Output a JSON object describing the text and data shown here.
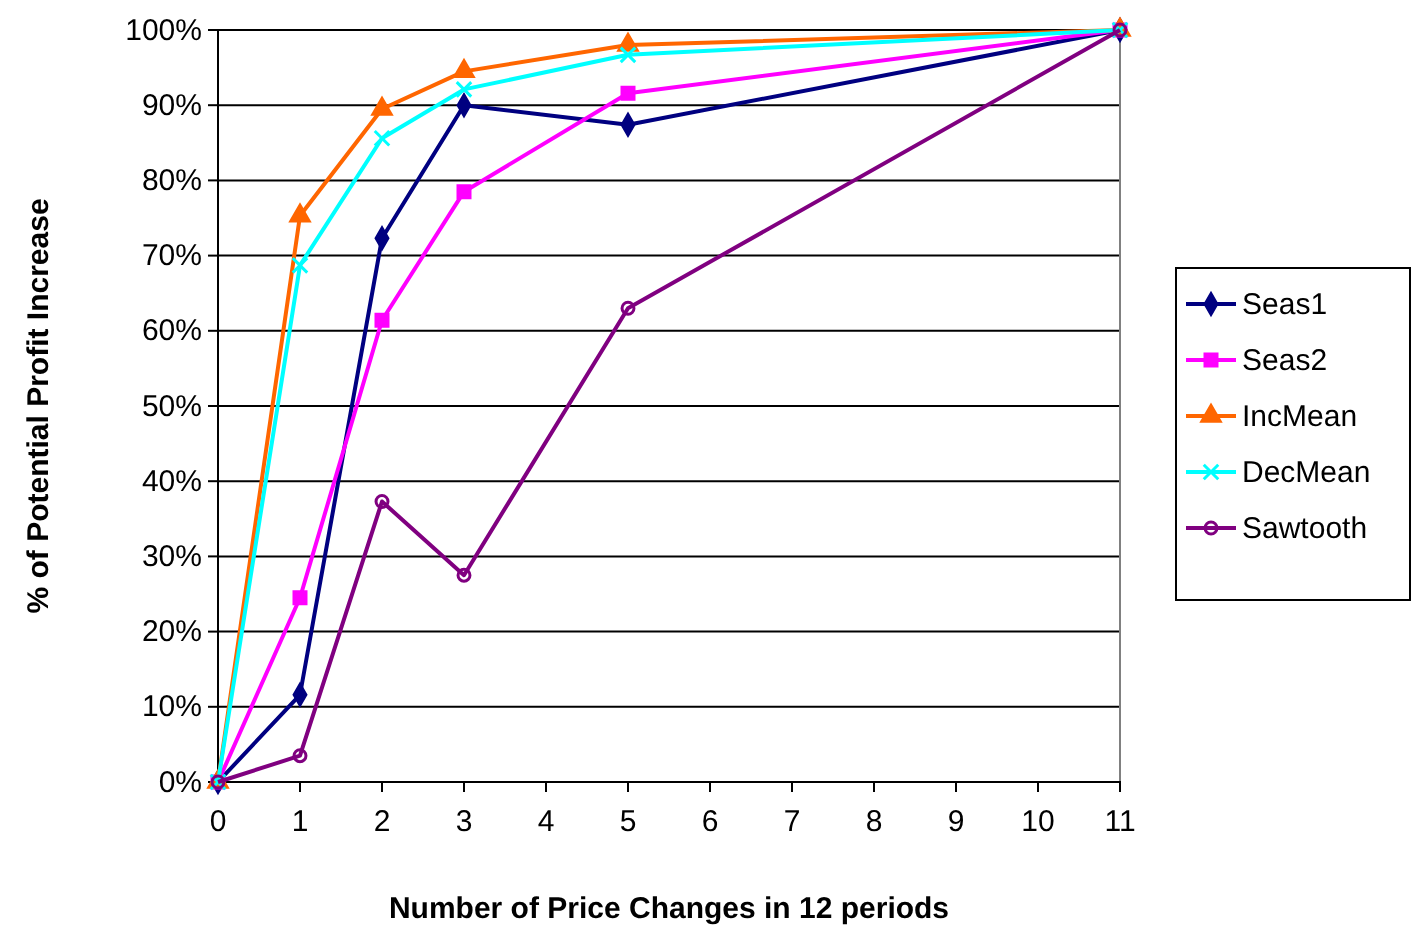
{
  "chart_data": {
    "type": "line",
    "xlabel": "Number of Price Changes in 12 periods",
    "ylabel": "% of Potential Profit Increase",
    "x": [
      0,
      1,
      2,
      3,
      5,
      11
    ],
    "xlim": [
      0,
      11
    ],
    "xticks": [
      0,
      1,
      2,
      3,
      4,
      5,
      6,
      7,
      8,
      9,
      10,
      11
    ],
    "ylim": [
      0,
      100
    ],
    "yticks": [
      {
        "value": 0,
        "label": "0%"
      },
      {
        "value": 10,
        "label": "10%"
      },
      {
        "value": 20,
        "label": "20%"
      },
      {
        "value": 30,
        "label": "30%"
      },
      {
        "value": 40,
        "label": "40%"
      },
      {
        "value": 50,
        "label": "50%"
      },
      {
        "value": 60,
        "label": "60%"
      },
      {
        "value": 70,
        "label": "70%"
      },
      {
        "value": 80,
        "label": "80%"
      },
      {
        "value": 90,
        "label": "90%"
      },
      {
        "value": 100,
        "label": "100%"
      }
    ],
    "grid": "y",
    "legend": "right",
    "line_style": "solid",
    "series": [
      {
        "name": "Seas1",
        "color": "#000080",
        "marker": "diamond",
        "values": [
          0,
          11.6,
          72.3,
          90,
          87.4,
          100
        ]
      },
      {
        "name": "Seas2",
        "color": "#ff00ff",
        "marker": "square",
        "values": [
          0,
          24.5,
          61.4,
          78.5,
          91.6,
          100
        ]
      },
      {
        "name": "IncMean",
        "color": "#ff6600",
        "marker": "triangle",
        "values": [
          0,
          75.3,
          89.5,
          94.5,
          98,
          100
        ]
      },
      {
        "name": "DecMean",
        "color": "#00ffff",
        "marker": "cross",
        "values": [
          0,
          68.7,
          85.6,
          92.1,
          96.7,
          100
        ]
      },
      {
        "name": "Sawtooth",
        "color": "#800080",
        "marker": "circle",
        "values": [
          0,
          3.5,
          37.3,
          27.5,
          63,
          100
        ]
      }
    ]
  }
}
